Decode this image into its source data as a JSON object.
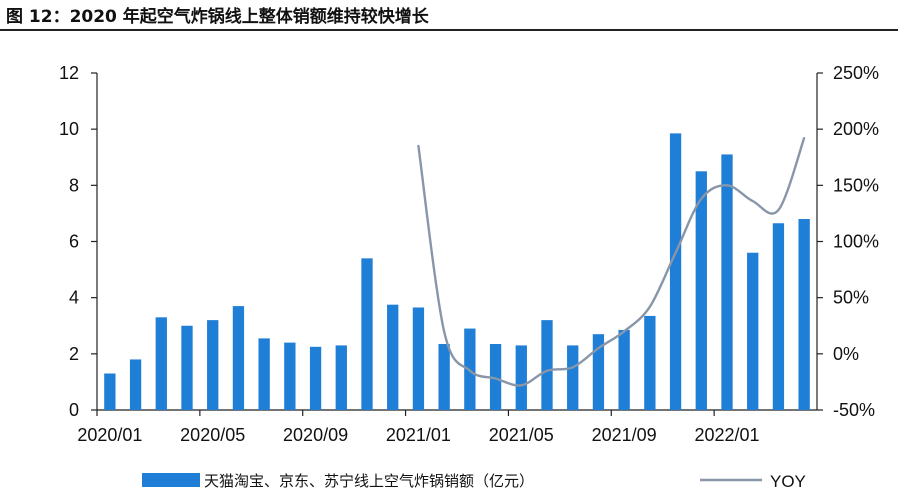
{
  "title": "图 12：2020 年起空气炸锅线上整体销额维持较快增长",
  "chart_data": {
    "type": "bar",
    "categories": [
      "2020/01",
      "2020/02",
      "2020/03",
      "2020/04",
      "2020/05",
      "2020/06",
      "2020/07",
      "2020/08",
      "2020/09",
      "2020/10",
      "2020/11",
      "2020/12",
      "2021/01",
      "2021/02",
      "2021/03",
      "2021/04",
      "2021/05",
      "2021/06",
      "2021/07",
      "2021/08",
      "2021/09",
      "2021/10",
      "2021/11",
      "2021/12",
      "2022/01",
      "2022/02",
      "2022/03",
      "2022/04"
    ],
    "x_tick_labels": [
      "2020/01",
      "2020/05",
      "2020/09",
      "2021/01",
      "2021/05",
      "2021/09",
      "2022/01"
    ],
    "y_left_ticks": [
      "0",
      "2",
      "4",
      "6",
      "8",
      "10",
      "12"
    ],
    "y_right_ticks": [
      "-50%",
      "0%",
      "50%",
      "100%",
      "150%",
      "200%",
      "250%"
    ],
    "ylim_left": [
      0,
      12
    ],
    "ylim_right": [
      -50,
      250
    ],
    "series": [
      {
        "name": "天猫淘宝、京东、苏宁线上空气炸锅销额（亿元）",
        "type": "bar",
        "axis": "left",
        "color": "#1f7ed6",
        "values": [
          1.3,
          1.8,
          3.3,
          3.0,
          3.2,
          3.7,
          2.55,
          2.4,
          2.25,
          2.3,
          5.4,
          3.75,
          3.65,
          2.35,
          2.9,
          2.35,
          2.3,
          3.2,
          2.3,
          2.7,
          2.85,
          3.35,
          9.85,
          8.5,
          9.1,
          5.6,
          6.65,
          6.8
        ]
      },
      {
        "name": "YOY",
        "type": "line",
        "axis": "right",
        "color": "#8896aa",
        "values": [
          null,
          null,
          null,
          null,
          null,
          null,
          null,
          null,
          null,
          null,
          null,
          null,
          185,
          20,
          -15,
          -22,
          -28,
          -15,
          -12,
          5,
          20,
          42,
          90,
          138,
          150,
          136,
          128,
          192
        ]
      }
    ],
    "legend_position": "bottom",
    "grid": false
  }
}
